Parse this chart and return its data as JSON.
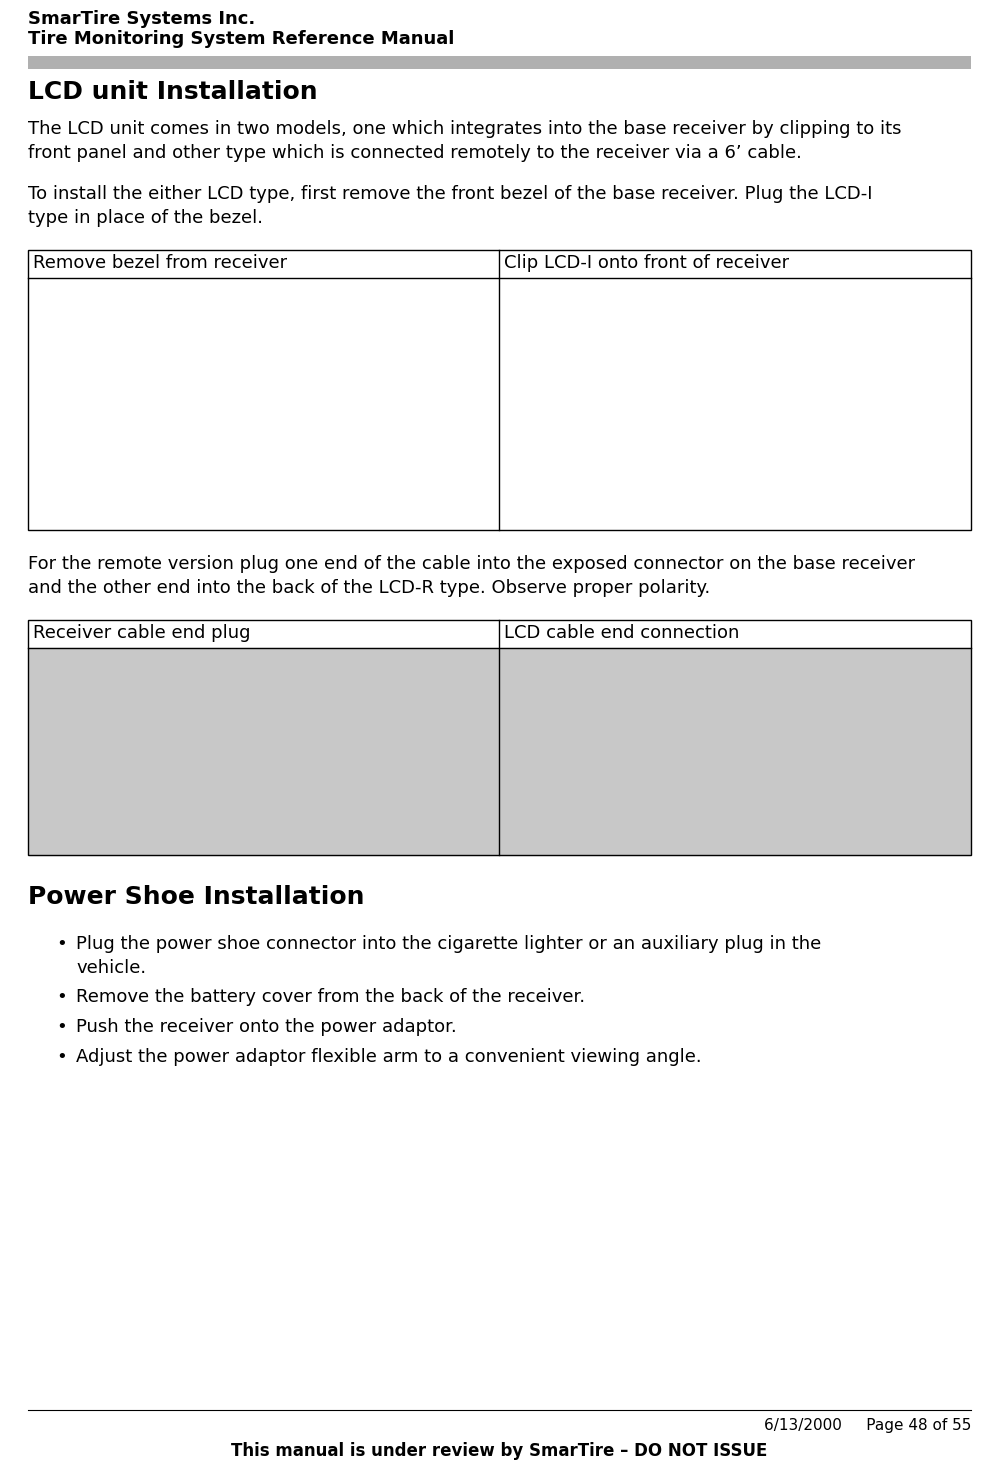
{
  "header_line1": "SmarTire Systems Inc.",
  "header_line2": "Tire Monitoring System Reference Manual",
  "header_bar_color": "#b0b0b0",
  "section1_title": "LCD unit Installation",
  "para1": "The LCD unit comes in two models, one which integrates into the base receiver by clipping to its\nfront panel and other type which is connected remotely to the receiver via a 6’ cable.",
  "para2": "To install the either LCD type, first remove the front bezel of the base receiver. Plug the LCD-I\ntype in place of the bezel.",
  "table1_col1_header": "Remove bezel from receiver",
  "table1_col2_header": "Clip LCD-I onto front of receiver",
  "para3": "For the remote version plug one end of the cable into the exposed connector on the base receiver\nand the other end into the back of the LCD-R type. Observe proper polarity.",
  "table2_col1_header": "Receiver cable end plug",
  "table2_col2_header": "LCD cable end connection",
  "section2_title": "Power Shoe Installation",
  "bullet1": "Plug the power shoe connector into the cigarette lighter or an auxiliary plug in the\nvehicle.",
  "bullet2": "Remove the battery cover from the back of the receiver.",
  "bullet3": "Push the receiver onto the power adaptor.",
  "bullet4": "Adjust the power adaptor flexible arm to a convenient viewing angle.",
  "footer_date": "6/13/2000     Page 48 of 55",
  "footer_note": "This manual is under review by SmarTire – DO NOT ISSUE",
  "bg_color": "#ffffff",
  "text_color": "#000000",
  "header_font_size": 13,
  "body_font_size": 13,
  "section_title_font_size": 18
}
